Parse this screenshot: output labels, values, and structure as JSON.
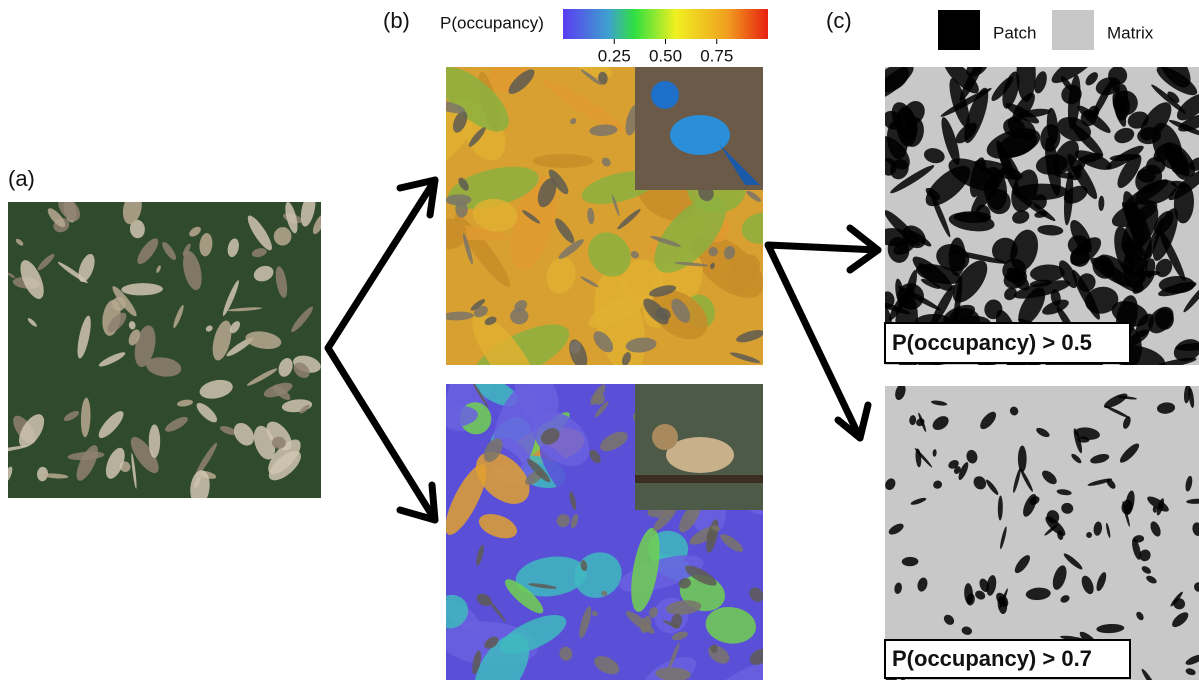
{
  "panels": {
    "a": {
      "label": "(a)"
    },
    "b": {
      "label": "(b)"
    },
    "c": {
      "label": "(c)"
    }
  },
  "colorbar": {
    "title": "P(occupancy)",
    "lim": [
      0,
      1
    ],
    "ticks": [
      {
        "value": 0.25,
        "label": "0.25"
      },
      {
        "value": 0.5,
        "label": "0.50"
      },
      {
        "value": 0.75,
        "label": "0.75"
      }
    ]
  },
  "legend": {
    "items": [
      {
        "name": "Patch",
        "color": "#000000"
      },
      {
        "name": "Matrix",
        "color": "#c8c8c8"
      }
    ]
  },
  "thresholds": [
    "P(occupancy) > 0.5",
    "P(occupancy) > 0.7"
  ]
}
